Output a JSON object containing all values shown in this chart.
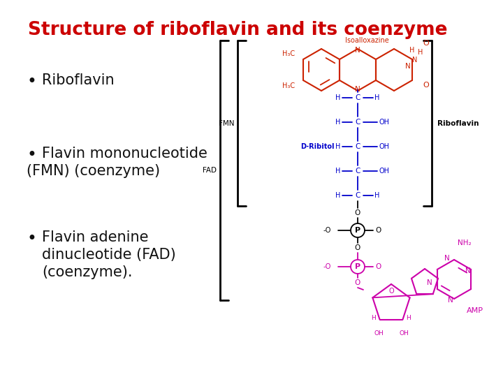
{
  "title": "Structure of riboflavin and its coenzyme",
  "title_color": "#cc0000",
  "title_fontsize": 19,
  "background_color": "#ffffff",
  "bullet1": "Riboflavin",
  "bullet2_line1": "Flavin mononucleotide",
  "bullet2_line2": "(FMN) (coenzyme)",
  "bullet3_line1": "Flavin adenine",
  "bullet3_line2": "dinucleotide (FAD)",
  "bullet3_line3": "(coenzyme).",
  "bullet_fontsize": 15,
  "bullet_color": "#111111",
  "iso_color": "#cc2200",
  "chain_color": "#0000cc",
  "black": "#000000",
  "magenta": "#cc00aa",
  "fmn_label": "FMN",
  "fad_label": "FAD",
  "riboflavin_label": "Riboflavin",
  "iso_label": "Isoalloxazine",
  "ribitol_label": "D-Ribitol",
  "amp_label": "AMP"
}
